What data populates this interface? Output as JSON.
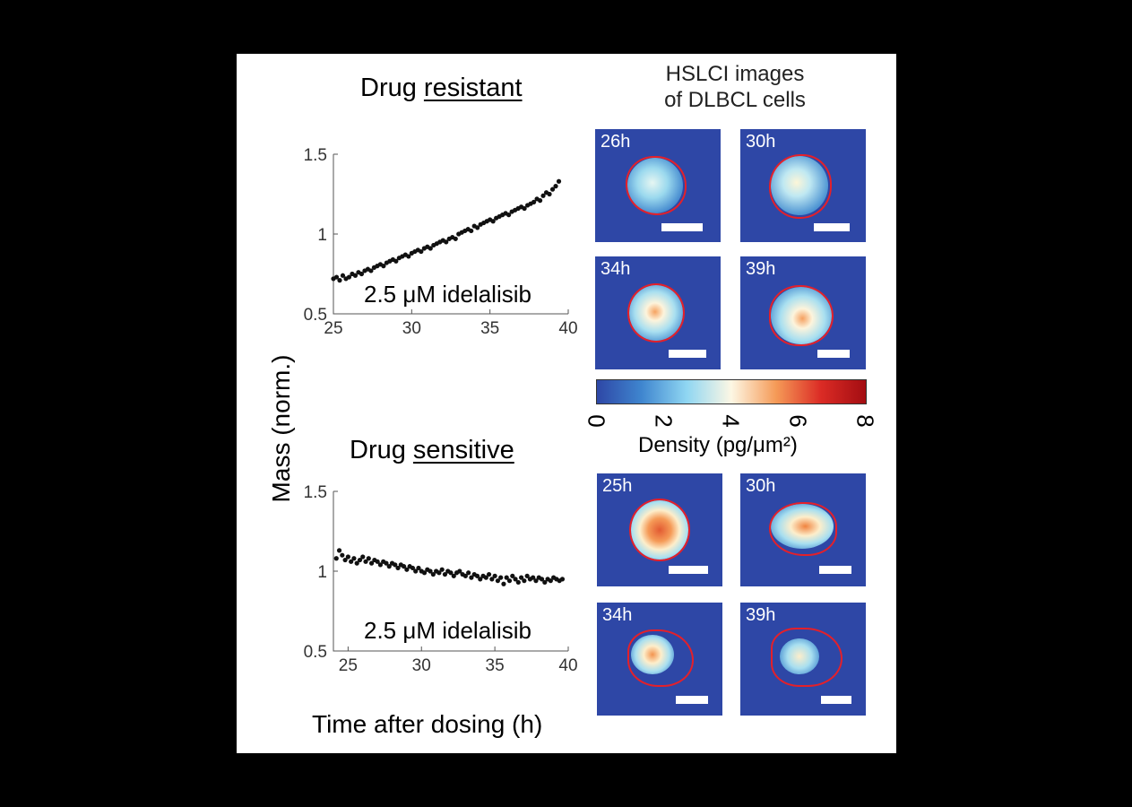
{
  "figure": {
    "y_label": "Mass (norm.)",
    "x_label": "Time after dosing (h)",
    "images_header": [
      "HSLCI images",
      "of DLBCL cells"
    ],
    "colorbar": {
      "label": "Density (pg/μm²)",
      "ticks": [
        "0",
        "2",
        "4",
        "6",
        "8"
      ],
      "range": [
        0,
        8
      ],
      "colors": [
        "#2e47a6",
        "#3f86cf",
        "#8fd6f2",
        "#fdf7e4",
        "#f59a57",
        "#db2b25",
        "#a30d12"
      ]
    },
    "resistant_images": [
      {
        "time": "26h",
        "density_peak": 3.2
      },
      {
        "time": "30h",
        "density_peak": 4.0
      },
      {
        "time": "34h",
        "density_peak": 4.6
      },
      {
        "time": "39h",
        "density_peak": 4.8
      }
    ],
    "sensitive_images": [
      {
        "time": "25h",
        "density_peak": 6.2
      },
      {
        "time": "30h",
        "density_peak": 5.0
      },
      {
        "time": "34h",
        "density_peak": 4.8
      },
      {
        "time": "39h",
        "density_peak": 3.6
      }
    ]
  },
  "chart_data": [
    {
      "type": "scatter",
      "title_prefix": "Drug ",
      "title_emph": "resistant",
      "annotation": "2.5 μM idelalisib",
      "xlim": [
        25,
        40
      ],
      "ylim": [
        0.5,
        1.5
      ],
      "xticks": [
        "25",
        "30",
        "35",
        "40"
      ],
      "yticks": [
        "0.5",
        "1",
        "1.5"
      ],
      "grid": false,
      "x": [
        25.0,
        25.2,
        25.4,
        25.6,
        25.8,
        26.0,
        26.2,
        26.4,
        26.6,
        26.8,
        27.0,
        27.2,
        27.4,
        27.6,
        27.8,
        28.0,
        28.2,
        28.4,
        28.6,
        28.8,
        29.0,
        29.2,
        29.4,
        29.6,
        29.8,
        30.0,
        30.2,
        30.4,
        30.6,
        30.8,
        31.0,
        31.2,
        31.4,
        31.6,
        31.8,
        32.0,
        32.2,
        32.4,
        32.6,
        32.8,
        33.0,
        33.2,
        33.4,
        33.6,
        33.8,
        34.0,
        34.2,
        34.4,
        34.6,
        34.8,
        35.0,
        35.2,
        35.4,
        35.6,
        35.8,
        36.0,
        36.2,
        36.4,
        36.6,
        36.8,
        37.0,
        37.2,
        37.4,
        37.6,
        37.8,
        38.0,
        38.2,
        38.4,
        38.6,
        38.8,
        39.0,
        39.2,
        39.4
      ],
      "y": [
        0.72,
        0.73,
        0.71,
        0.74,
        0.72,
        0.73,
        0.75,
        0.74,
        0.76,
        0.75,
        0.77,
        0.78,
        0.77,
        0.79,
        0.8,
        0.81,
        0.8,
        0.82,
        0.83,
        0.84,
        0.83,
        0.85,
        0.86,
        0.87,
        0.86,
        0.88,
        0.89,
        0.9,
        0.89,
        0.91,
        0.92,
        0.91,
        0.93,
        0.94,
        0.95,
        0.96,
        0.95,
        0.97,
        0.98,
        0.97,
        1.0,
        1.01,
        1.02,
        1.03,
        1.02,
        1.05,
        1.04,
        1.06,
        1.07,
        1.08,
        1.09,
        1.08,
        1.1,
        1.11,
        1.12,
        1.13,
        1.12,
        1.14,
        1.15,
        1.16,
        1.17,
        1.16,
        1.18,
        1.19,
        1.2,
        1.22,
        1.21,
        1.24,
        1.26,
        1.25,
        1.28,
        1.3,
        1.33
      ]
    },
    {
      "type": "scatter",
      "title_prefix": "Drug ",
      "title_emph": "sensitive",
      "annotation": "2.5 μM idelalisib",
      "xlim": [
        24,
        40
      ],
      "ylim": [
        0.5,
        1.5
      ],
      "xticks": [
        "25",
        "30",
        "35",
        "40"
      ],
      "yticks": [
        "0.5",
        "1",
        "1.5"
      ],
      "grid": false,
      "x": [
        24.2,
        24.4,
        24.6,
        24.8,
        25.0,
        25.2,
        25.4,
        25.6,
        25.8,
        26.0,
        26.2,
        26.4,
        26.6,
        26.8,
        27.0,
        27.2,
        27.4,
        27.6,
        27.8,
        28.0,
        28.2,
        28.4,
        28.6,
        28.8,
        29.0,
        29.2,
        29.4,
        29.6,
        29.8,
        30.0,
        30.2,
        30.4,
        30.6,
        30.8,
        31.0,
        31.2,
        31.4,
        31.6,
        31.8,
        32.0,
        32.2,
        32.4,
        32.6,
        32.8,
        33.0,
        33.2,
        33.4,
        33.6,
        33.8,
        34.0,
        34.2,
        34.4,
        34.6,
        34.8,
        35.0,
        35.2,
        35.4,
        35.6,
        35.8,
        36.0,
        36.2,
        36.4,
        36.6,
        36.8,
        37.0,
        37.2,
        37.4,
        37.6,
        37.8,
        38.0,
        38.2,
        38.4,
        38.6,
        38.8,
        39.0,
        39.2,
        39.4,
        39.6
      ],
      "y": [
        1.08,
        1.13,
        1.1,
        1.07,
        1.09,
        1.06,
        1.08,
        1.05,
        1.07,
        1.09,
        1.06,
        1.08,
        1.05,
        1.07,
        1.06,
        1.04,
        1.06,
        1.05,
        1.03,
        1.05,
        1.04,
        1.02,
        1.04,
        1.03,
        1.01,
        1.03,
        1.02,
        1.0,
        1.02,
        1.0,
        0.99,
        1.01,
        1.0,
        0.98,
        1.0,
        0.99,
        1.01,
        0.98,
        1.0,
        0.99,
        0.97,
        0.99,
        1.0,
        0.98,
        0.97,
        0.99,
        0.96,
        0.98,
        0.97,
        0.95,
        0.97,
        0.96,
        0.98,
        0.95,
        0.97,
        0.94,
        0.96,
        0.92,
        0.96,
        0.94,
        0.97,
        0.95,
        0.93,
        0.96,
        0.94,
        0.97,
        0.95,
        0.96,
        0.94,
        0.96,
        0.95,
        0.93,
        0.95,
        0.94,
        0.96,
        0.95,
        0.94,
        0.95
      ]
    }
  ]
}
